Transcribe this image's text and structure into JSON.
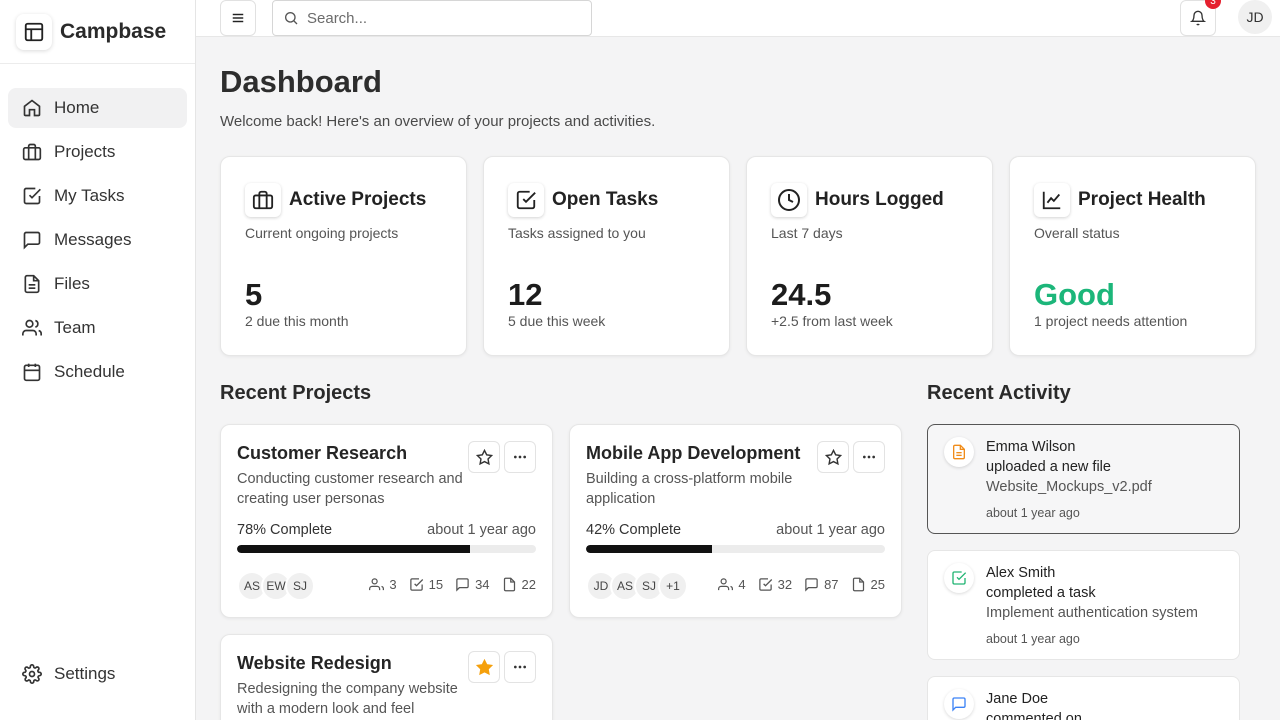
{
  "brand": {
    "name": "Campbase"
  },
  "sidebar": {
    "items": [
      {
        "label": "Home",
        "icon": "home-icon"
      },
      {
        "label": "Projects",
        "icon": "briefcase-icon"
      },
      {
        "label": "My Tasks",
        "icon": "task-check-icon"
      },
      {
        "label": "Messages",
        "icon": "message-icon"
      },
      {
        "label": "Files",
        "icon": "file-icon"
      },
      {
        "label": "Team",
        "icon": "users-icon"
      },
      {
        "label": "Schedule",
        "icon": "calendar-icon"
      }
    ],
    "settings_label": "Settings"
  },
  "topbar": {
    "search_placeholder": "Search...",
    "notification_count": "3",
    "user_initials": "JD"
  },
  "page": {
    "title": "Dashboard",
    "subtitle": "Welcome back! Here's an overview of your projects and activities."
  },
  "stats": [
    {
      "title": "Active Projects",
      "desc": "Current ongoing projects",
      "value": "5",
      "note": "2 due this month",
      "icon": "briefcase-icon"
    },
    {
      "title": "Open Tasks",
      "desc": "Tasks assigned to you",
      "value": "12",
      "note": "5 due this week",
      "icon": "task-check-icon"
    },
    {
      "title": "Hours Logged",
      "desc": "Last 7 days",
      "value": "24.5",
      "note": "+2.5 from last week",
      "icon": "clock-icon"
    },
    {
      "title": "Project Health",
      "desc": "Overall status",
      "value": "Good",
      "note": "1 project needs attention",
      "icon": "chart-line-icon"
    }
  ],
  "recent_projects": {
    "title": "Recent Projects",
    "items": [
      {
        "name": "Customer Research",
        "desc": "Conducting customer research and creating user personas",
        "progress_label": "78% Complete",
        "progress": 78,
        "updated": "about 1 year ago",
        "starred": false,
        "members": [
          "AS",
          "EW",
          "SJ"
        ],
        "stats": {
          "people": "3",
          "tasks": "15",
          "messages": "34",
          "files": "22"
        }
      },
      {
        "name": "Mobile App Development",
        "desc": "Building a cross-platform mobile application",
        "progress_label": "42% Complete",
        "progress": 42,
        "updated": "about 1 year ago",
        "starred": false,
        "members": [
          "JD",
          "AS",
          "SJ",
          "+1"
        ],
        "stats": {
          "people": "4",
          "tasks": "32",
          "messages": "87",
          "files": "25"
        }
      },
      {
        "name": "Website Redesign",
        "desc": "Redesigning the company website with a modern look and feel",
        "starred": true
      }
    ]
  },
  "recent_activity": {
    "title": "Recent Activity",
    "items": [
      {
        "user": "Emma Wilson",
        "action": "uploaded a new file",
        "object": "Website_Mockups_v2.pdf",
        "time": "about 1 year ago",
        "icon": "file-icon",
        "color": "#f08c1a"
      },
      {
        "user": "Alex Smith",
        "action": "completed a task",
        "object": "Implement authentication system",
        "time": "about 1 year ago",
        "icon": "task-check-icon",
        "color": "#22b573"
      },
      {
        "user": "Jane Doe",
        "action": "commented on",
        "icon": "message-icon",
        "color": "#3b82f6"
      }
    ]
  },
  "colors": {
    "accent_good": "#1cb67a",
    "star": "#f5a00c",
    "badge": "#e5202e"
  }
}
